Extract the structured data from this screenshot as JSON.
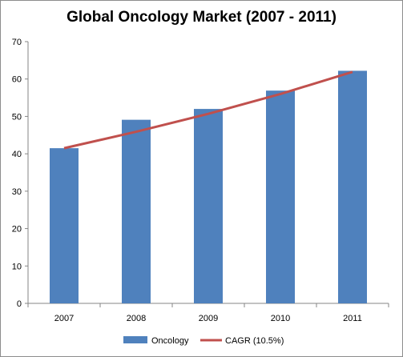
{
  "chart_data": {
    "type": "bar",
    "title": "Global Oncology Market (2007 - 2011)",
    "xlabel": "",
    "ylabel": "",
    "categories": [
      "2007",
      "2008",
      "2009",
      "2010",
      "2011"
    ],
    "ylim": [
      0,
      70
    ],
    "yticks": [
      "0",
      "10",
      "20",
      "30",
      "40",
      "50",
      "60",
      "70"
    ],
    "grid": false,
    "legend_position": "bottom",
    "series": [
      {
        "name": "Oncology",
        "type": "bar",
        "color": "#4f81bd",
        "values": [
          41.5,
          49.1,
          52.0,
          56.9,
          62.2
        ]
      },
      {
        "name": "CAGR (10.5%)",
        "type": "line",
        "color": "#c0504d",
        "values": [
          41.5,
          45.9,
          50.7,
          56.0,
          61.9
        ]
      }
    ]
  }
}
